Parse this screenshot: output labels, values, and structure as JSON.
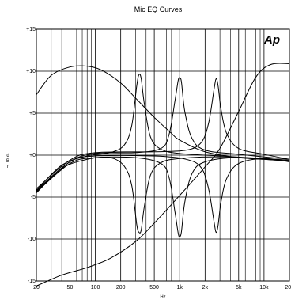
{
  "chart_data": {
    "type": "line",
    "title": "Mic EQ Curves",
    "xlabel": "Hz",
    "ylabel": "d B r",
    "x_scale": "log",
    "xlim": [
      20,
      20000
    ],
    "ylim": [
      -15,
      15
    ],
    "grid": true,
    "x_ticks": [
      20,
      50,
      100,
      200,
      500,
      1000,
      2000,
      5000,
      10000,
      20000
    ],
    "x_tick_labels": [
      "20",
      "50",
      "100",
      "200",
      "500",
      "1k",
      "2k",
      "5k",
      "10k",
      "20k"
    ],
    "x_minor_ticks": [
      30,
      40,
      60,
      70,
      80,
      90,
      300,
      400,
      600,
      700,
      800,
      900,
      3000,
      4000,
      6000,
      7000,
      8000,
      9000
    ],
    "y_ticks": [
      15,
      10,
      5,
      0,
      -5,
      -10,
      -15
    ],
    "y_tick_labels": [
      "+15",
      "+10",
      "+5",
      "+0",
      "-5",
      "-10",
      "-15"
    ],
    "logo": "Ap",
    "series": [
      {
        "points": [
          [
            20,
            7.2
          ],
          [
            30,
            9.5
          ],
          [
            50,
            10.5
          ],
          [
            80,
            10.6
          ],
          [
            120,
            10.1
          ],
          [
            200,
            8.6
          ],
          [
            300,
            6.8
          ],
          [
            500,
            4.5
          ],
          [
            800,
            2.6
          ],
          [
            1000,
            1.8
          ],
          [
            2000,
            0.4
          ],
          [
            5000,
            -0.3
          ],
          [
            10000,
            -0.5
          ],
          [
            20000,
            -0.7
          ]
        ]
      },
      {
        "points": [
          [
            20,
            -15.6
          ],
          [
            40,
            -14.3
          ],
          [
            80,
            -13.4
          ],
          [
            150,
            -12.3
          ],
          [
            300,
            -10.3
          ],
          [
            500,
            -8.1
          ],
          [
            1000,
            -4.8
          ],
          [
            2000,
            -1.4
          ],
          [
            3000,
            0.8
          ],
          [
            5000,
            5.2
          ],
          [
            8000,
            9.3
          ],
          [
            12000,
            10.8
          ],
          [
            20000,
            10.9
          ]
        ]
      },
      {
        "points": [
          [
            20,
            -4.2
          ],
          [
            40,
            -1.2
          ],
          [
            80,
            -0.1
          ],
          [
            150,
            0.3
          ],
          [
            220,
            1.2
          ],
          [
            270,
            3.5
          ],
          [
            310,
            8.3
          ],
          [
            330,
            9.6
          ],
          [
            350,
            9.1
          ],
          [
            380,
            6.2
          ],
          [
            450,
            2.2
          ],
          [
            600,
            0.7
          ],
          [
            1000,
            0.2
          ],
          [
            3000,
            -0.1
          ],
          [
            10000,
            -0.4
          ],
          [
            20000,
            -0.6
          ]
        ]
      },
      {
        "points": [
          [
            20,
            -4.5
          ],
          [
            40,
            -1.6
          ],
          [
            80,
            -0.5
          ],
          [
            150,
            -0.3
          ],
          [
            220,
            -1.3
          ],
          [
            270,
            -3.6
          ],
          [
            310,
            -8.3
          ],
          [
            330,
            -9.2
          ],
          [
            350,
            -8.9
          ],
          [
            380,
            -6.2
          ],
          [
            450,
            -2.4
          ],
          [
            600,
            -0.9
          ],
          [
            1000,
            -0.4
          ],
          [
            3000,
            -0.2
          ],
          [
            10000,
            -0.5
          ],
          [
            20000,
            -0.7
          ]
        ]
      },
      {
        "points": [
          [
            20,
            -4.3
          ],
          [
            50,
            -0.8
          ],
          [
            100,
            0.2
          ],
          [
            300,
            0.3
          ],
          [
            600,
            0.8
          ],
          [
            750,
            2.5
          ],
          [
            880,
            6.5
          ],
          [
            960,
            8.9
          ],
          [
            1000,
            9.2
          ],
          [
            1050,
            8.7
          ],
          [
            1150,
            5.2
          ],
          [
            1400,
            2.0
          ],
          [
            2000,
            0.6
          ],
          [
            5000,
            0.1
          ],
          [
            20000,
            -0.5
          ]
        ]
      },
      {
        "points": [
          [
            20,
            -4.4
          ],
          [
            50,
            -1.0
          ],
          [
            100,
            -0.3
          ],
          [
            300,
            -0.3
          ],
          [
            600,
            -1.0
          ],
          [
            750,
            -2.7
          ],
          [
            880,
            -6.8
          ],
          [
            960,
            -9.3
          ],
          [
            1000,
            -9.7
          ],
          [
            1050,
            -9.1
          ],
          [
            1150,
            -5.6
          ],
          [
            1400,
            -2.2
          ],
          [
            2000,
            -0.8
          ],
          [
            5000,
            -0.3
          ],
          [
            20000,
            -0.7
          ]
        ]
      },
      {
        "points": [
          [
            20,
            -4.0
          ],
          [
            50,
            -0.6
          ],
          [
            100,
            0.3
          ],
          [
            500,
            0.4
          ],
          [
            1200,
            0.6
          ],
          [
            1800,
            1.5
          ],
          [
            2200,
            3.8
          ],
          [
            2550,
            7.8
          ],
          [
            2700,
            9.1
          ],
          [
            2850,
            8.3
          ],
          [
            3100,
            5.4
          ],
          [
            3600,
            2.6
          ],
          [
            5000,
            0.8
          ],
          [
            10000,
            0.1
          ],
          [
            20000,
            -0.5
          ]
        ]
      },
      {
        "points": [
          [
            20,
            -4.2
          ],
          [
            50,
            -0.8
          ],
          [
            100,
            -0.1
          ],
          [
            500,
            -0.1
          ],
          [
            1200,
            -0.5
          ],
          [
            1800,
            -1.5
          ],
          [
            2200,
            -4.0
          ],
          [
            2550,
            -7.9
          ],
          [
            2700,
            -9.2
          ],
          [
            2850,
            -8.4
          ],
          [
            3100,
            -5.5
          ],
          [
            3600,
            -2.8
          ],
          [
            5000,
            -1.0
          ],
          [
            10000,
            -0.4
          ],
          [
            20000,
            -0.8
          ]
        ]
      }
    ]
  }
}
